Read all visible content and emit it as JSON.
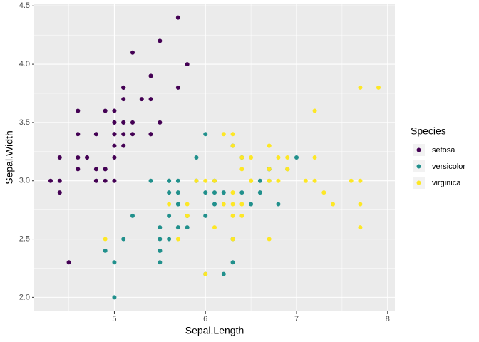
{
  "chart_data": {
    "type": "scatter",
    "x_label": "Sepal.Length",
    "y_label": "Sepal.Width",
    "legend_title": "Species",
    "legend_position": "right",
    "grid": true,
    "xlim": [
      4.12,
      8.08
    ],
    "ylim": [
      1.88,
      4.52
    ],
    "xticks": [
      5,
      6,
      7,
      8
    ],
    "yticks": [
      {
        "value": 2,
        "label": "2.0"
      },
      2.5,
      {
        "value": 3,
        "label": "3.0"
      },
      3.5,
      {
        "value": 4,
        "label": "4.0"
      },
      4.5
    ],
    "series": [
      {
        "name": "setosa",
        "color": "#440154",
        "x": [
          5.1,
          4.9,
          4.7,
          4.6,
          5.0,
          5.4,
          4.6,
          5.0,
          4.4,
          4.9,
          5.4,
          4.8,
          4.8,
          4.3,
          5.8,
          5.7,
          5.4,
          5.1,
          5.7,
          5.1,
          5.4,
          5.1,
          4.6,
          5.1,
          4.8,
          5.0,
          5.0,
          5.2,
          5.2,
          4.7,
          4.8,
          5.4,
          5.2,
          5.5,
          4.9,
          5.0,
          5.5,
          4.9,
          4.4,
          5.1,
          5.0,
          4.5,
          4.4,
          5.0,
          5.1,
          4.8,
          5.1,
          4.6,
          5.3,
          5.0
        ],
        "values": [
          3.5,
          3.0,
          3.2,
          3.1,
          3.6,
          3.9,
          3.4,
          3.4,
          2.9,
          3.1,
          3.7,
          3.4,
          3.0,
          3.0,
          4.0,
          4.4,
          3.9,
          3.5,
          3.8,
          3.8,
          3.4,
          3.7,
          3.6,
          3.3,
          3.4,
          3.0,
          3.4,
          3.5,
          3.4,
          3.2,
          3.1,
          3.4,
          4.1,
          4.2,
          3.1,
          3.2,
          3.5,
          3.6,
          3.0,
          3.4,
          3.5,
          2.3,
          3.2,
          3.5,
          3.8,
          3.0,
          3.8,
          3.2,
          3.7,
          3.3
        ]
      },
      {
        "name": "versicolor",
        "color": "#21908C",
        "x": [
          7.0,
          6.4,
          6.9,
          5.5,
          6.5,
          5.7,
          6.3,
          4.9,
          6.6,
          5.2,
          5.0,
          5.9,
          6.0,
          6.1,
          5.6,
          6.7,
          5.6,
          5.8,
          6.2,
          5.6,
          5.9,
          6.1,
          6.3,
          6.1,
          6.4,
          6.6,
          6.8,
          6.7,
          6.0,
          5.7,
          5.5,
          5.5,
          5.8,
          6.0,
          5.4,
          6.0,
          6.7,
          6.3,
          5.6,
          5.5,
          5.5,
          6.1,
          5.8,
          5.0,
          5.6,
          5.7,
          5.7,
          6.2,
          5.1,
          5.7
        ],
        "values": [
          3.2,
          3.2,
          3.1,
          2.3,
          2.8,
          2.8,
          3.3,
          2.4,
          2.9,
          2.7,
          2.0,
          3.0,
          2.2,
          2.9,
          2.9,
          3.1,
          3.0,
          2.7,
          2.2,
          2.5,
          3.2,
          2.8,
          2.5,
          2.8,
          2.9,
          3.0,
          2.8,
          3.0,
          2.9,
          2.6,
          2.4,
          2.4,
          2.7,
          2.7,
          3.0,
          3.4,
          3.1,
          2.3,
          3.0,
          2.5,
          2.6,
          3.0,
          2.6,
          2.3,
          2.7,
          3.0,
          2.9,
          2.9,
          2.5,
          2.8
        ]
      },
      {
        "name": "virginica",
        "color": "#FDE725",
        "x": [
          6.3,
          5.8,
          7.1,
          6.3,
          6.5,
          7.6,
          4.9,
          7.3,
          6.7,
          7.2,
          6.5,
          6.4,
          6.8,
          5.7,
          5.8,
          6.4,
          6.5,
          7.7,
          7.7,
          6.0,
          6.9,
          5.6,
          7.7,
          6.3,
          6.7,
          7.2,
          6.2,
          6.1,
          6.4,
          7.2,
          7.4,
          7.9,
          6.4,
          6.3,
          6.1,
          7.7,
          6.3,
          6.4,
          6.0,
          6.9,
          6.7,
          6.9,
          5.8,
          6.8,
          6.7,
          6.7,
          6.3,
          6.5,
          6.2,
          5.9
        ],
        "values": [
          3.3,
          2.7,
          3.0,
          2.9,
          3.0,
          3.0,
          2.5,
          2.9,
          2.5,
          3.6,
          3.2,
          2.7,
          3.0,
          2.5,
          2.8,
          3.2,
          3.0,
          3.8,
          2.6,
          2.2,
          3.2,
          2.8,
          2.8,
          2.7,
          3.3,
          3.2,
          2.8,
          3.0,
          2.8,
          3.0,
          2.8,
          3.8,
          2.8,
          2.8,
          2.6,
          3.0,
          3.4,
          3.1,
          3.0,
          3.1,
          3.1,
          3.1,
          2.7,
          3.2,
          3.3,
          3.0,
          2.5,
          3.0,
          3.4,
          3.0
        ]
      }
    ]
  }
}
